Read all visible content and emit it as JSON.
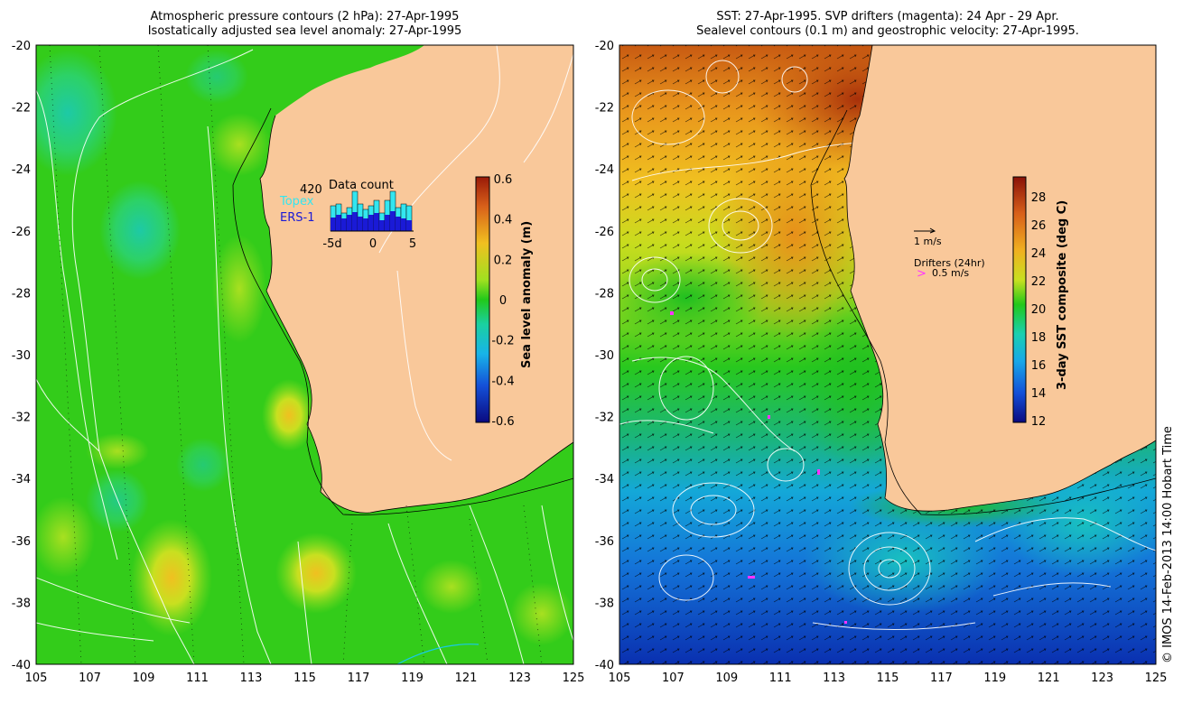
{
  "left_panel": {
    "title_line1": "Atmospheric pressure contours (2 hPa): 27-Apr-1995",
    "title_line2": "Isostatically adjusted sea level anomaly: 27-Apr-1995",
    "y_ticks": [
      "-20",
      "-22",
      "-24",
      "-26",
      "-28",
      "-30",
      "-32",
      "-34",
      "-36",
      "-38",
      "-40"
    ],
    "x_ticks": [
      "105",
      "107",
      "109",
      "111",
      "113",
      "115",
      "117",
      "119",
      "121",
      "123",
      "125"
    ],
    "colorbar": {
      "label": "Sea level anomaly (m)",
      "ticks": [
        "0.6",
        "0.4",
        "0.2",
        "0",
        "-0.2",
        "-0.4",
        "-0.6"
      ]
    },
    "data_count": {
      "title": "Data count",
      "total": "420",
      "topex_label": "Topex",
      "ers_label": "ERS-1",
      "topex_color": "#33e6f0",
      "ers_color": "#1a1ad6",
      "axis_labels": [
        "-5d",
        "0",
        "5"
      ]
    }
  },
  "right_panel": {
    "title_line1": "SST: 27-Apr-1995. SVP drifters (magenta): 24 Apr - 29 Apr.",
    "title_line2": "Sealevel contours (0.1 m) and geostrophic velocity: 27-Apr-1995.",
    "y_ticks": [
      "-20",
      "-22",
      "-24",
      "-26",
      "-28",
      "-30",
      "-32",
      "-34",
      "-36",
      "-38",
      "-40"
    ],
    "x_ticks": [
      "105",
      "107",
      "109",
      "111",
      "113",
      "115",
      "117",
      "119",
      "121",
      "123",
      "125"
    ],
    "colorbar": {
      "label": "3-day SST composite (deg C)",
      "ticks": [
        "28",
        "26",
        "24",
        "22",
        "20",
        "18",
        "16",
        "14",
        "12"
      ]
    },
    "legend": {
      "velocity_label": "1 m/s",
      "drifters_title": "Drifters (24hr)",
      "drifter_speed": "0.5 m/s",
      "drifter_symbol": ">",
      "drifter_color": "#ff33ff"
    }
  },
  "credit": "© IMOS 14-Feb-2013 14:00 Hobart Time",
  "colors": {
    "land": "#f9c89a",
    "ocean_green": "#33cc1a",
    "sst_warm": "#d66a1a",
    "sst_cold": "#1446d6"
  }
}
